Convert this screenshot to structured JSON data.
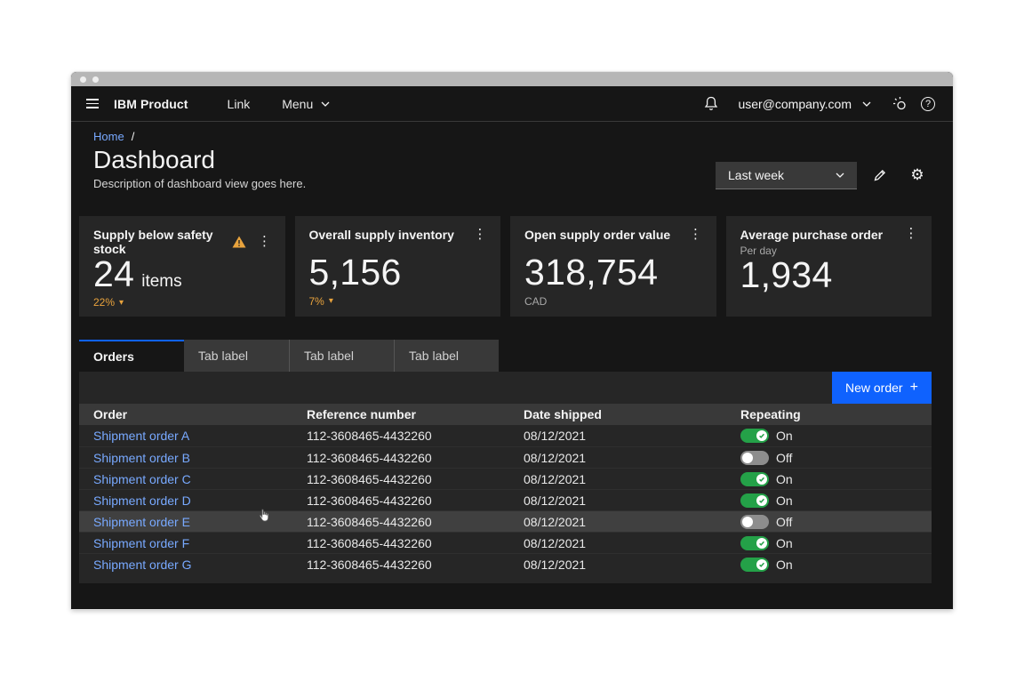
{
  "header": {
    "app_name": "IBM Product",
    "nav": [
      {
        "label": "Link"
      },
      {
        "label": "Menu"
      }
    ],
    "email": "user@company.com"
  },
  "breadcrumb": {
    "home": "Home",
    "separator": "/"
  },
  "page": {
    "title": "Dashboard",
    "description": "Description of dashboard view goes here."
  },
  "controls": {
    "period_dropdown_value": "Last week"
  },
  "cards": [
    {
      "title": "Supply below safety stock",
      "value": "24",
      "suffix": "items",
      "trend": "22%",
      "trend_direction": "down",
      "has_warning": true
    },
    {
      "title": "Overall supply inventory",
      "value": "5,156",
      "trend": "7%",
      "trend_direction": "down"
    },
    {
      "title": "Open supply order value",
      "value": "318,754",
      "unit": "CAD"
    },
    {
      "title": "Average purchase order",
      "subtitle": "Per day",
      "value": "1,934"
    }
  ],
  "tabs": [
    {
      "label": "Orders",
      "active": true
    },
    {
      "label": "Tab label",
      "active": false
    },
    {
      "label": "Tab label",
      "active": false
    },
    {
      "label": "Tab label",
      "active": false
    }
  ],
  "orders_table": {
    "new_order_button": "New order",
    "columns": [
      "Order",
      "Reference number",
      "Date shipped",
      "Repeating"
    ],
    "hover_row_index": 4,
    "rows": [
      {
        "order": "Shipment order A",
        "reference": "112-3608465-4432260",
        "date_shipped": "08/12/2021",
        "repeating": "On"
      },
      {
        "order": "Shipment order B",
        "reference": "112-3608465-4432260",
        "date_shipped": "08/12/2021",
        "repeating": "Off"
      },
      {
        "order": "Shipment order C",
        "reference": "112-3608465-4432260",
        "date_shipped": "08/12/2021",
        "repeating": "On"
      },
      {
        "order": "Shipment order D",
        "reference": "112-3608465-4432260",
        "date_shipped": "08/12/2021",
        "repeating": "On"
      },
      {
        "order": "Shipment order E",
        "reference": "112-3608465-4432260",
        "date_shipped": "08/12/2021",
        "repeating": "Off"
      },
      {
        "order": "Shipment order F",
        "reference": "112-3608465-4432260",
        "date_shipped": "08/12/2021",
        "repeating": "On"
      },
      {
        "order": "Shipment order G",
        "reference": "112-3608465-4432260",
        "date_shipped": "08/12/2021",
        "repeating": "On"
      }
    ]
  },
  "icons": {
    "overflow_glyph": "⋮",
    "gear_glyph": "⚙",
    "caret_down_glyph": "▾",
    "plus_glyph": "+",
    "help_glyph": "?"
  },
  "colors": {
    "accent": "#0f62fe",
    "link": "#78a9ff",
    "warning": "#e8a33d",
    "toggle_on": "#24a148",
    "page_bg": "#161616",
    "tile_bg": "#262626",
    "header_row_bg": "#393939"
  }
}
